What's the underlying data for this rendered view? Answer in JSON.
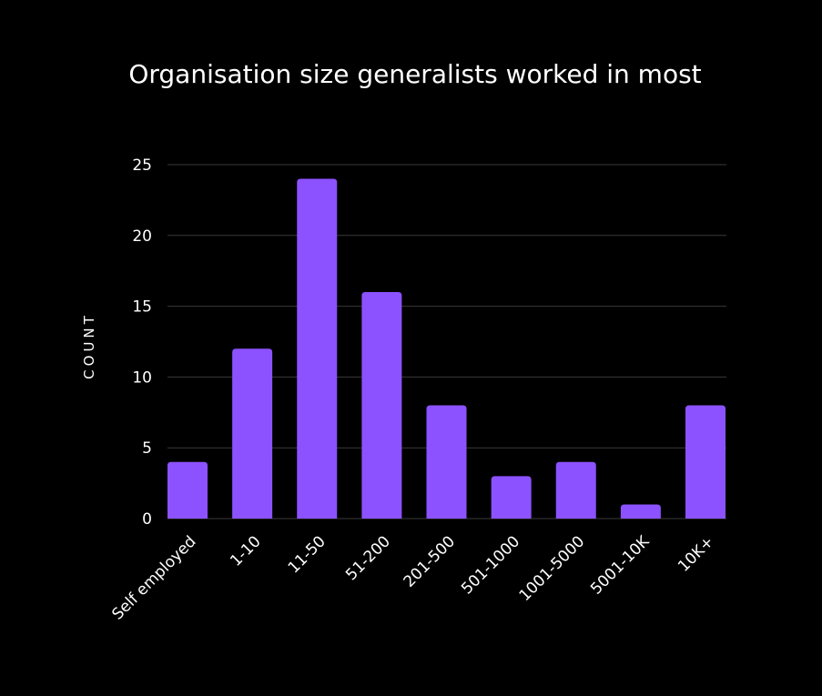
{
  "chart_data": {
    "type": "bar",
    "title": "Organisation size generalists worked in most",
    "xlabel": "",
    "ylabel": "COUNT",
    "ylim": [
      0,
      25
    ],
    "yticks": [
      "0",
      "5",
      "10",
      "15",
      "20",
      "25"
    ],
    "grid": true,
    "categories": [
      "Self employed",
      "1-10",
      "11-50",
      "51-200",
      "201-500",
      "501-1000",
      "1001-5000",
      "5001-10K",
      "10K+"
    ],
    "values": [
      4,
      12,
      24,
      16,
      8,
      3,
      4,
      1,
      8
    ],
    "colors": {
      "background": "#000000",
      "bar": "#8c52ff",
      "grid": "#3a3a3a",
      "text": "#ffffff"
    }
  }
}
